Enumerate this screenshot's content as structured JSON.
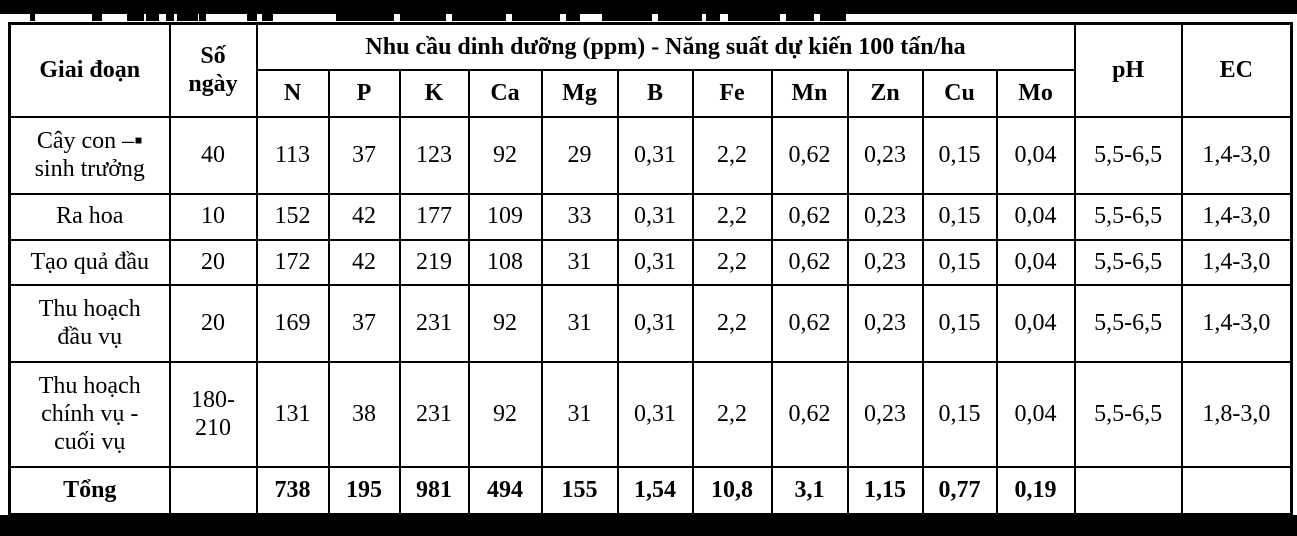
{
  "colors": {
    "background": "#ffffff",
    "text": "#000000",
    "table_border": "#000000",
    "letterbox_bar": "#000000"
  },
  "table": {
    "header": {
      "stage": "Giai đoạn",
      "days": "Số\nngày",
      "nutrients_group": "Nhu cầu dinh dưỡng (ppm) - Năng suất dự kiến 100 tấn/ha",
      "nutrients": [
        "N",
        "P",
        "K",
        "Ca",
        "Mg",
        "B",
        "Fe",
        "Mn",
        "Zn",
        "Cu",
        "Mo"
      ],
      "ph": "pH",
      "ec": "EC"
    },
    "rows": [
      {
        "stage": "Cây con –▪\nsinh trưởng",
        "days": "40",
        "values": [
          "113",
          "37",
          "123",
          "92",
          "29",
          "0,31",
          "2,2",
          "0,62",
          "0,23",
          "0,15",
          "0,04"
        ],
        "ph": "5,5-6,5",
        "ec": "1,4-3,0"
      },
      {
        "stage": "Ra hoa",
        "days": "10",
        "values": [
          "152",
          "42",
          "177",
          "109",
          "33",
          "0,31",
          "2,2",
          "0,62",
          "0,23",
          "0,15",
          "0,04"
        ],
        "ph": "5,5-6,5",
        "ec": "1,4-3,0"
      },
      {
        "stage": "Tạo quả đầu",
        "days": "20",
        "values": [
          "172",
          "42",
          "219",
          "108",
          "31",
          "0,31",
          "2,2",
          "0,62",
          "0,23",
          "0,15",
          "0,04"
        ],
        "ph": "5,5-6,5",
        "ec": "1,4-3,0"
      },
      {
        "stage": "Thu hoạch\nđầu vụ",
        "days": "20",
        "values": [
          "169",
          "37",
          "231",
          "92",
          "31",
          "0,31",
          "2,2",
          "0,62",
          "0,23",
          "0,15",
          "0,04"
        ],
        "ph": "5,5-6,5",
        "ec": "1,4-3,0"
      },
      {
        "stage": "Thu hoạch\nchính vụ -\ncuối vụ",
        "days": "180-\n210",
        "values": [
          "131",
          "38",
          "231",
          "92",
          "31",
          "0,31",
          "2,2",
          "0,62",
          "0,23",
          "0,15",
          "0,04"
        ],
        "ph": "5,5-6,5",
        "ec": "1,8-3,0"
      }
    ],
    "total": {
      "stage": "Tổng",
      "days": "",
      "values": [
        "738",
        "195",
        "981",
        "494",
        "155",
        "1,54",
        "10,8",
        "3,1",
        "1,15",
        "0,77",
        "0,19"
      ],
      "ph": "",
      "ec": ""
    }
  },
  "artifacts": {
    "top_text_fragments": [
      [
        30,
        5
      ],
      [
        92,
        10
      ],
      [
        127,
        17
      ],
      [
        146,
        13
      ],
      [
        166,
        8
      ],
      [
        177,
        21
      ],
      [
        199,
        7
      ],
      [
        247,
        10
      ],
      [
        262,
        11
      ],
      [
        336,
        58
      ],
      [
        400,
        46
      ],
      [
        452,
        54
      ],
      [
        512,
        48
      ],
      [
        566,
        14
      ],
      [
        602,
        50
      ],
      [
        658,
        44
      ],
      [
        706,
        14
      ],
      [
        728,
        52
      ],
      [
        786,
        28
      ],
      [
        820,
        26
      ]
    ]
  }
}
